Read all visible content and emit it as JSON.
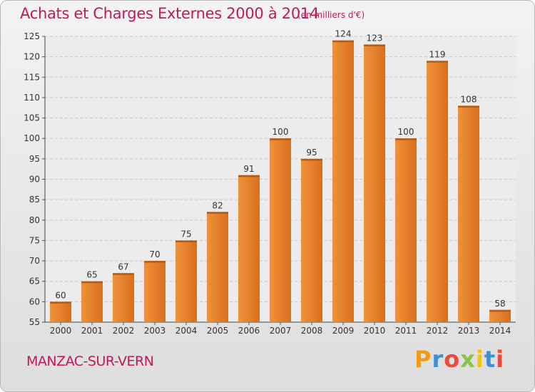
{
  "header": {
    "title": "Achats et Charges Externes 2000 à 2014",
    "unit_note": "(en milliers d'€)"
  },
  "footer": {
    "place_name": "MANZAC-SUR-VERN",
    "logo_letters": [
      "P",
      "r",
      "o",
      "x",
      "i",
      "t",
      "i"
    ],
    "logo_colors": [
      "#f39c12",
      "#3f8fd2",
      "#e74c3c",
      "#8bc34a",
      "#f1c40f",
      "#3f8fd2",
      "#e74c3c"
    ]
  },
  "chart_data": {
    "type": "bar",
    "title": "Achats et Charges Externes 2000 à 2014",
    "subtitle": "(en milliers d'€)",
    "categories": [
      "2000",
      "2001",
      "2002",
      "2003",
      "2004",
      "2005",
      "2006",
      "2007",
      "2008",
      "2009",
      "2010",
      "2011",
      "2012",
      "2013",
      "2014"
    ],
    "values": [
      60,
      65,
      67,
      70,
      75,
      82,
      91,
      100,
      95,
      124,
      123,
      100,
      119,
      108,
      58
    ],
    "xlabel": "",
    "ylabel": "",
    "ylim": [
      55,
      125
    ],
    "yticks": [
      55,
      60,
      65,
      70,
      75,
      80,
      85,
      90,
      95,
      100,
      105,
      110,
      115,
      120,
      125
    ],
    "grid": true,
    "bar_color": "#f0913a",
    "bar_color_dark": "#d96f1c"
  }
}
